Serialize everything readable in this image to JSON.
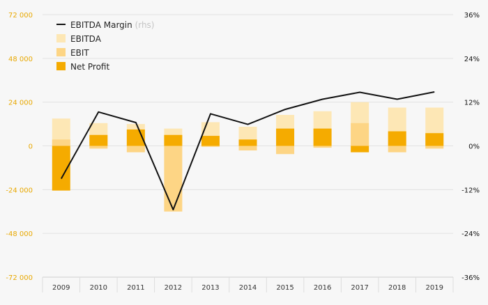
{
  "chart_data": {
    "type": "bar",
    "categories": [
      "2009",
      "2010",
      "2011",
      "2012",
      "2013",
      "2014",
      "2015",
      "2016",
      "2017",
      "2018",
      "2019"
    ],
    "series": [
      {
        "name": "EBITDA",
        "axis": "left",
        "color": "#fde7b5",
        "values": [
          15000,
          12500,
          12000,
          9500,
          13000,
          10500,
          17000,
          19000,
          24000,
          21000,
          21000
        ]
      },
      {
        "name": "EBIT",
        "axis": "left",
        "color": "#fdd585",
        "values": [
          3500,
          -1500,
          -3500,
          -36000,
          -500,
          -2500,
          -4500,
          -1000,
          12500,
          -3500,
          -1500
        ]
      },
      {
        "name": "Net Profit",
        "axis": "left",
        "color": "#f5ab00",
        "values": [
          -24500,
          6000,
          9000,
          6000,
          5500,
          3500,
          9500,
          9500,
          -3500,
          8000,
          7000
        ]
      },
      {
        "name": "EBITDA Margin",
        "axis": "right",
        "type": "line",
        "color": "#111111",
        "values": [
          -0.09,
          0.093,
          0.064,
          -0.175,
          0.088,
          0.059,
          0.1,
          0.128,
          0.147,
          0.128,
          0.148
        ]
      }
    ],
    "ylim_left": [
      -72000,
      72000
    ],
    "ylim_right": [
      -0.36,
      0.36
    ],
    "yticks_left": [
      "72 000",
      "48 000",
      "24 000",
      "0",
      "-24 000",
      "-48 000",
      "-72 000"
    ],
    "yticks_right": [
      "36%",
      "24%",
      "12%",
      "0%",
      "-12%",
      "-24%",
      "-36%"
    ],
    "legend": {
      "position": "top-left",
      "entries": [
        {
          "label": "EBITDA Margin",
          "suffix": "(rhs)",
          "marker": "line",
          "color": "#111111"
        },
        {
          "label": "EBITDA",
          "marker": "box",
          "color": "#fde7b5"
        },
        {
          "label": "EBIT",
          "marker": "box",
          "color": "#fdd585"
        },
        {
          "label": "Net Profit",
          "marker": "box",
          "color": "#f5ab00"
        }
      ]
    },
    "grid": true
  }
}
